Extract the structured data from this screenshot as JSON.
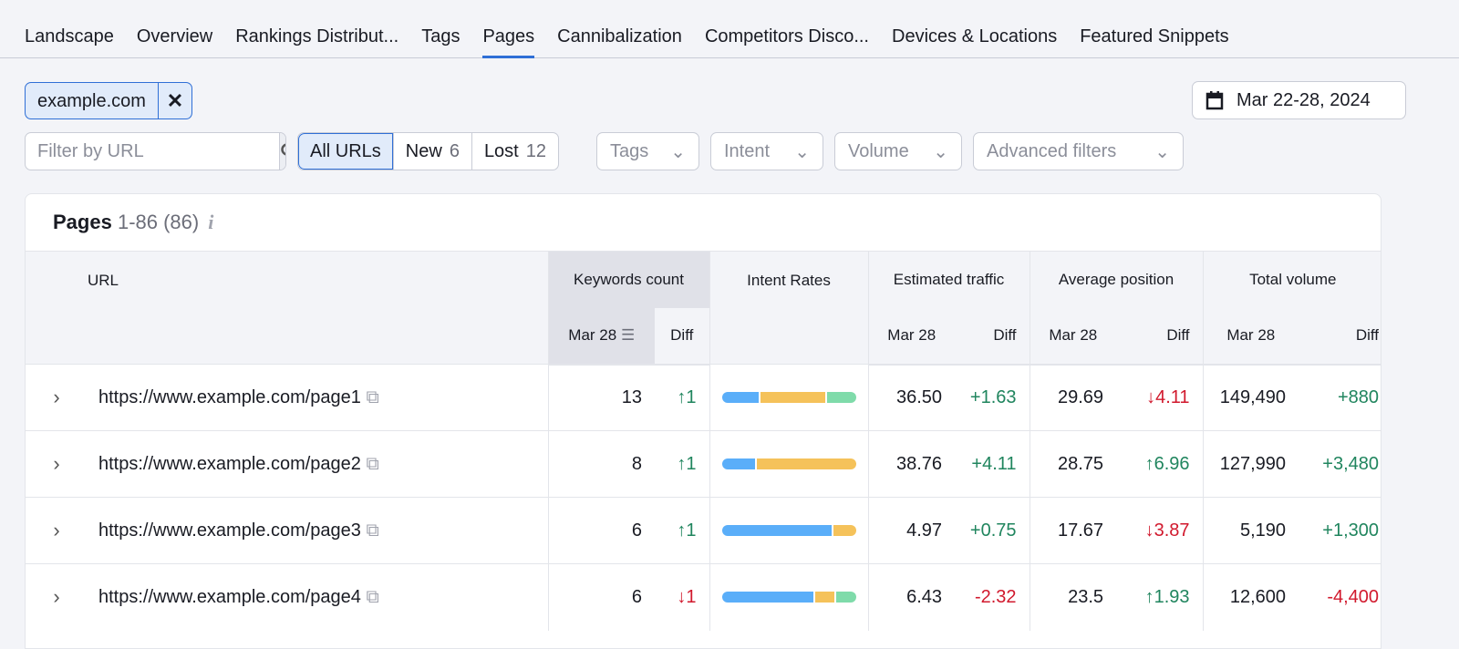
{
  "tabs": [
    "Landscape",
    "Overview",
    "Rankings Distribut...",
    "Tags",
    "Pages",
    "Cannibalization",
    "Competitors Disco...",
    "Devices & Locations",
    "Featured Snippets"
  ],
  "active_tab": "Pages",
  "domain_chip": {
    "label": "example.com"
  },
  "date_range": "Mar 22-28, 2024",
  "filter": {
    "placeholder": "Filter by URL",
    "value": ""
  },
  "segments": [
    {
      "label": "All URLs",
      "count": ""
    },
    {
      "label": "New",
      "count": "6"
    },
    {
      "label": "Lost",
      "count": "12"
    }
  ],
  "dropdowns": [
    "Tags",
    "Intent",
    "Volume",
    "Advanced filters"
  ],
  "card": {
    "title": "Pages",
    "range": "1-86 (86)",
    "info": "i"
  },
  "columns": {
    "url": "URL",
    "keywords": "Keywords count",
    "intent": "Intent Rates",
    "traffic": "Estimated traffic",
    "position": "Average position",
    "volume": "Total volume",
    "date": "Mar 28",
    "diff": "Diff"
  },
  "intent_colors": [
    "#5aaef9",
    "#f5c25a",
    "#7fdbaa"
  ],
  "rows": [
    {
      "url": "https://www.example.com/page1",
      "kw": "13",
      "kw_diff": "↑1",
      "kw_dir": "up",
      "intent": [
        0.28,
        0.5,
        0.22
      ],
      "traffic": "36.50",
      "traffic_diff": "+1.63",
      "traffic_dir": "up",
      "pos": "29.69",
      "pos_diff": "↓4.11",
      "pos_dir": "down",
      "vol": "149,490",
      "vol_diff": "+880",
      "vol_dir": "up"
    },
    {
      "url": "https://www.example.com/page2",
      "kw": "8",
      "kw_diff": "↑1",
      "kw_dir": "up",
      "intent": [
        0.25,
        0.75,
        0
      ],
      "traffic": "38.76",
      "traffic_diff": "+4.11",
      "traffic_dir": "up",
      "pos": "28.75",
      "pos_diff": "↑6.96",
      "pos_dir": "up",
      "vol": "127,990",
      "vol_diff": "+3,480",
      "vol_dir": "up"
    },
    {
      "url": "https://www.example.com/page3",
      "kw": "6",
      "kw_diff": "↑1",
      "kw_dir": "up",
      "intent": [
        0.83,
        0.17,
        0
      ],
      "traffic": "4.97",
      "traffic_diff": "+0.75",
      "traffic_dir": "up",
      "pos": "17.67",
      "pos_diff": "↓3.87",
      "pos_dir": "down",
      "vol": "5,190",
      "vol_diff": "+1,300",
      "vol_dir": "up"
    },
    {
      "url": "https://www.example.com/page4",
      "kw": "6",
      "kw_diff": "↓1",
      "kw_dir": "down",
      "intent": [
        0.7,
        0.15,
        0.15
      ],
      "traffic": "6.43",
      "traffic_diff": "-2.32",
      "traffic_dir": "down",
      "pos": "23.5",
      "pos_diff": "↑1.93",
      "pos_dir": "up",
      "vol": "12,600",
      "vol_diff": "-4,400",
      "vol_dir": "down"
    }
  ]
}
